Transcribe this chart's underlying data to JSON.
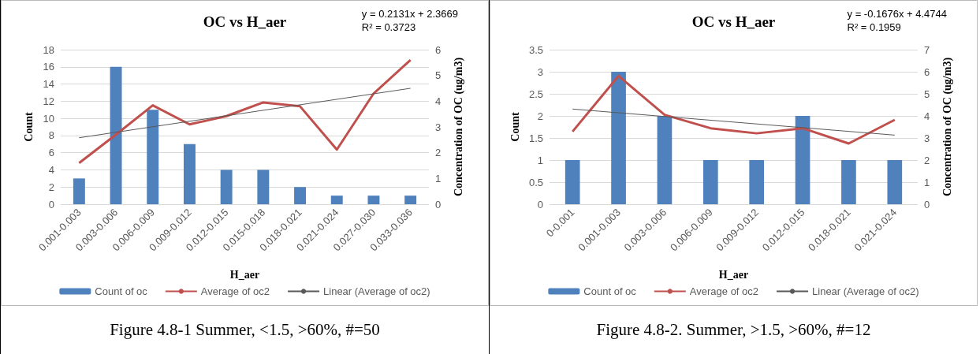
{
  "chart_data": [
    {
      "type": "bar",
      "title": "OC vs H_aer",
      "xlabel": "H_aer",
      "ylabel": "Count",
      "y2label": "Concentration of OC (ug/m3)",
      "categories": [
        "0.001-0.003",
        "0.003-0.006",
        "0.006-0.009",
        "0.009-0.012",
        "0.012-0.015",
        "0.015-0.018",
        "0.018-0.021",
        "0.021-0.024",
        "0.027-0.030",
        "0.033-0.036"
      ],
      "series": [
        {
          "name": "Count of oc",
          "color": "#4f81bd",
          "values": [
            3,
            16,
            11,
            7,
            4,
            4,
            2,
            1,
            1,
            1
          ]
        },
        {
          "name": "Average of oc2",
          "type": "line",
          "axis": "y2",
          "color": "#c0504d",
          "values": [
            1.6,
            2.7,
            3.84,
            3.1,
            3.42,
            3.95,
            3.8,
            2.12,
            4.3,
            5.6
          ]
        },
        {
          "name": "Linear (Average of oc2)",
          "type": "line",
          "axis": "y2",
          "color": "#595959",
          "x": [
            "0.001-0.003",
            "0.033-0.036"
          ],
          "values": [
            2.58,
            4.5
          ]
        }
      ],
      "ylim": [
        0,
        18
      ],
      "yticks": [
        0,
        2,
        4,
        6,
        8,
        10,
        12,
        14,
        16,
        18
      ],
      "y2lim": [
        0,
        6
      ],
      "y2ticks": [
        0,
        1,
        2,
        3,
        4,
        5,
        6
      ],
      "grid": "y",
      "legend": "bottom",
      "marker": "none",
      "annotations": [
        "y = 0.2131x + 2.3669",
        "R² = 0.3723",
        "Figure 4.8-1 Summer, <1.5, >60%, #=50"
      ]
    },
    {
      "type": "bar",
      "title": "OC vs H_aer",
      "xlabel": "H_aer",
      "ylabel": "Count",
      "y2label": "Concentration of OC (ug/m3)",
      "categories": [
        "0-0.001",
        "0.001-0.003",
        "0.003-0.006",
        "0.006-0.009",
        "0.009-0.012",
        "0.012-0.015",
        "0.018-0.021",
        "0.021-0.024"
      ],
      "series": [
        {
          "name": "Count of oc",
          "color": "#4f81bd",
          "values": [
            1,
            3,
            2,
            1,
            1,
            2,
            1,
            1
          ]
        },
        {
          "name": "Average of oc2",
          "type": "line",
          "axis": "y2",
          "color": "#c0504d",
          "values": [
            3.29,
            5.81,
            4.05,
            3.44,
            3.21,
            3.44,
            2.75,
            3.82
          ]
        },
        {
          "name": "Linear (Average of oc2)",
          "type": "line",
          "axis": "y2",
          "color": "#595959",
          "x": [
            "0-0.001",
            "0.021-0.024"
          ],
          "values": [
            4.31,
            3.13
          ]
        }
      ],
      "ylim": [
        0,
        3.5
      ],
      "yticks": [
        0,
        0.5,
        1,
        1.5,
        2,
        2.5,
        3,
        3.5
      ],
      "y2lim": [
        0,
        7
      ],
      "y2ticks": [
        0,
        1,
        2,
        3,
        4,
        5,
        6,
        7
      ],
      "grid": "y",
      "legend": "bottom",
      "marker": "none",
      "annotations": [
        "y = -0.1676x + 4.4744",
        "R² = 0.1959",
        "Figure 4.8-2. Summer, >1.5, >60%, #=12"
      ]
    }
  ]
}
